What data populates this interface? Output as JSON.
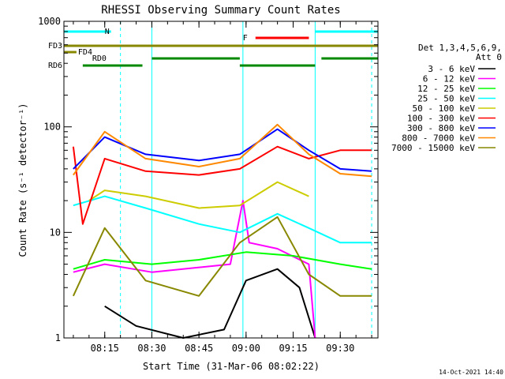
{
  "chart_data": {
    "type": "line",
    "title": "RHESSI Observing Summary Count Rates",
    "xlabel": "Start Time (31-Mar-06 08:02:22)",
    "ylabel": "Count Rate (s⁻¹ detector⁻¹)",
    "y_scale": "log",
    "ylim": [
      1,
      1000
    ],
    "xlim": [
      "08:02",
      "09:42"
    ],
    "x_ticks": [
      "08:15",
      "08:30",
      "08:45",
      "09:00",
      "09:15",
      "09:30"
    ],
    "y_ticks": [
      "1",
      "10",
      "100",
      "1000"
    ],
    "legend_header": [
      "Det 1,3,4,5,6,9,",
      "Att 0"
    ],
    "legend_position": "right",
    "series": [
      {
        "name": "3 - 6 keV",
        "color": "#000000",
        "values": [
          {
            "x": "08:05",
            "y": null
          },
          {
            "x": "08:15",
            "y": 2.0
          },
          {
            "x": "08:25",
            "y": 1.3
          },
          {
            "x": "08:40",
            "y": 1.0
          },
          {
            "x": "08:53",
            "y": 1.2
          },
          {
            "x": "09:00",
            "y": 3.5
          },
          {
            "x": "09:10",
            "y": 4.5
          },
          {
            "x": "09:17",
            "y": 3.0
          },
          {
            "x": "09:22",
            "y": 1.0
          }
        ]
      },
      {
        "name": "6 - 12 keV",
        "color": "#ff00ff",
        "values": [
          {
            "x": "08:05",
            "y": 4.2
          },
          {
            "x": "08:15",
            "y": 5.0
          },
          {
            "x": "08:30",
            "y": 4.2
          },
          {
            "x": "08:55",
            "y": 5.0
          },
          {
            "x": "08:59",
            "y": 20
          },
          {
            "x": "09:01",
            "y": 8
          },
          {
            "x": "09:10",
            "y": 7
          },
          {
            "x": "09:20",
            "y": 5
          },
          {
            "x": "09:22",
            "y": 1.0
          }
        ]
      },
      {
        "name": "12 - 25 keV",
        "color": "#00ff00",
        "values": [
          {
            "x": "08:05",
            "y": 4.5
          },
          {
            "x": "08:15",
            "y": 5.5
          },
          {
            "x": "08:30",
            "y": 5.0
          },
          {
            "x": "08:45",
            "y": 5.5
          },
          {
            "x": "09:00",
            "y": 6.5
          },
          {
            "x": "09:15",
            "y": 6.0
          },
          {
            "x": "09:30",
            "y": 5.0
          },
          {
            "x": "09:40",
            "y": 4.5
          }
        ]
      },
      {
        "name": "25 - 50 keV",
        "color": "#00ffff",
        "values": [
          {
            "x": "08:05",
            "y": 18
          },
          {
            "x": "08:15",
            "y": 22
          },
          {
            "x": "08:28",
            "y": 17
          },
          {
            "x": "08:45",
            "y": 12
          },
          {
            "x": "08:58",
            "y": 10
          },
          {
            "x": "09:10",
            "y": 15
          },
          {
            "x": "09:20",
            "y": 11
          },
          {
            "x": "09:30",
            "y": 8
          },
          {
            "x": "09:40",
            "y": 8
          }
        ]
      },
      {
        "name": "50 - 100 keV",
        "color": "#cccc00",
        "values": [
          {
            "x": "08:10",
            "y": 20
          },
          {
            "x": "08:15",
            "y": 25
          },
          {
            "x": "08:28",
            "y": 22
          },
          {
            "x": "08:45",
            "y": 17
          },
          {
            "x": "08:58",
            "y": 18
          },
          {
            "x": "09:10",
            "y": 30
          },
          {
            "x": "09:20",
            "y": 22
          }
        ]
      },
      {
        "name": "100 - 300 keV",
        "color": "#ff0000",
        "values": [
          {
            "x": "08:05",
            "y": 65
          },
          {
            "x": "08:08",
            "y": 12
          },
          {
            "x": "08:15",
            "y": 50
          },
          {
            "x": "08:28",
            "y": 38
          },
          {
            "x": "08:45",
            "y": 35
          },
          {
            "x": "08:58",
            "y": 40
          },
          {
            "x": "09:10",
            "y": 65
          },
          {
            "x": "09:20",
            "y": 50
          },
          {
            "x": "09:30",
            "y": 60
          },
          {
            "x": "09:40",
            "y": 60
          }
        ]
      },
      {
        "name": "300 - 800 keV",
        "color": "#0000ff",
        "values": [
          {
            "x": "08:05",
            "y": 40
          },
          {
            "x": "08:15",
            "y": 80
          },
          {
            "x": "08:28",
            "y": 55
          },
          {
            "x": "08:45",
            "y": 48
          },
          {
            "x": "08:58",
            "y": 55
          },
          {
            "x": "09:10",
            "y": 95
          },
          {
            "x": "09:20",
            "y": 60
          },
          {
            "x": "09:30",
            "y": 40
          },
          {
            "x": "09:40",
            "y": 38
          }
        ]
      },
      {
        "name": "800 - 7000 keV",
        "color": "#ff8800",
        "values": [
          {
            "x": "08:05",
            "y": 35
          },
          {
            "x": "08:15",
            "y": 90
          },
          {
            "x": "08:28",
            "y": 50
          },
          {
            "x": "08:45",
            "y": 42
          },
          {
            "x": "08:58",
            "y": 50
          },
          {
            "x": "09:10",
            "y": 105
          },
          {
            "x": "09:20",
            "y": 55
          },
          {
            "x": "09:30",
            "y": 36
          },
          {
            "x": "09:40",
            "y": 34
          }
        ]
      },
      {
        "name": "7000 - 15000 keV",
        "color": "#888800",
        "values": [
          {
            "x": "08:05",
            "y": 2.5
          },
          {
            "x": "08:15",
            "y": 11
          },
          {
            "x": "08:28",
            "y": 3.5
          },
          {
            "x": "08:45",
            "y": 2.5
          },
          {
            "x": "08:58",
            "y": 8
          },
          {
            "x": "09:10",
            "y": 14
          },
          {
            "x": "09:20",
            "y": 4
          },
          {
            "x": "09:30",
            "y": 2.5
          },
          {
            "x": "09:40",
            "y": 2.5
          }
        ]
      }
    ],
    "flags": [
      {
        "label": "N",
        "color": "#00ffff",
        "segments": [
          [
            "08:02",
            "08:17"
          ],
          [
            "09:22",
            "09:42"
          ]
        ]
      },
      {
        "label": "F",
        "color": "#ff0000",
        "segments": [
          [
            "09:03",
            "09:20"
          ]
        ]
      },
      {
        "label": "FD3",
        "color": "#888800",
        "segments": [
          [
            "08:02",
            "09:42"
          ]
        ]
      },
      {
        "label": "FD4",
        "color": "#888800",
        "segments": [
          [
            "08:02",
            "08:06"
          ]
        ]
      },
      {
        "label": "RD0",
        "color": "#008800",
        "segments": [
          [
            "08:30",
            "08:58"
          ],
          [
            "09:24",
            "09:42"
          ]
        ]
      },
      {
        "label": "RD6",
        "color": "#008800",
        "segments": [
          [
            "08:08",
            "08:27"
          ],
          [
            "08:58",
            "09:22"
          ]
        ]
      }
    ],
    "saa_lines": [
      "08:20",
      "09:40"
    ],
    "night_lines": [
      "08:02",
      "08:30",
      "08:59",
      "09:22"
    ],
    "timestamp": "14-Oct-2021 14:40"
  }
}
